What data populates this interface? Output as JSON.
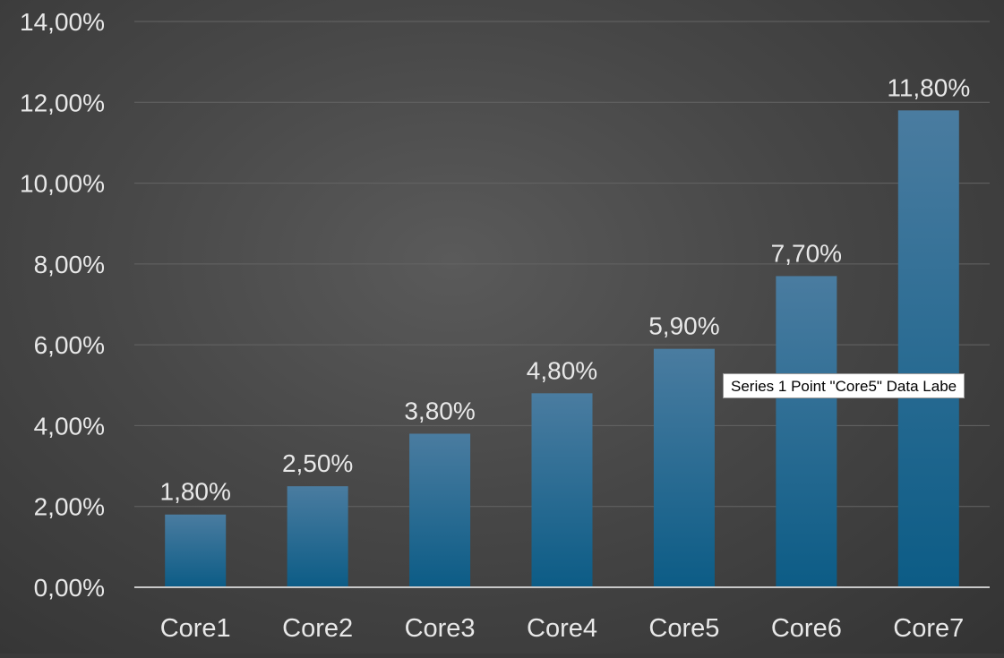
{
  "chart_data": {
    "type": "bar",
    "categories": [
      "Core1",
      "Core2",
      "Core3",
      "Core4",
      "Core5",
      "Core6",
      "Core7"
    ],
    "series": [
      {
        "values": [
          1.8,
          2.5,
          3.8,
          4.8,
          5.9,
          7.7,
          11.8
        ],
        "labels": [
          "1,80%",
          "2,50%",
          "3,80%",
          "4,80%",
          "5,90%",
          "7,70%",
          "11,80%"
        ]
      }
    ],
    "title": "",
    "xlabel": "",
    "ylabel": "",
    "ylim": [
      0,
      14
    ],
    "yticks": [
      0,
      2,
      4,
      6,
      8,
      10,
      12,
      14
    ],
    "ytick_labels": [
      "0,00%",
      "2,00%",
      "4,00%",
      "6,00%",
      "8,00%",
      "10,00%",
      "12,00%",
      "14,00%"
    ],
    "grid": true,
    "legend": "none",
    "colors": {
      "bar_top": "#4a7ca0",
      "bar_bottom": "#0c5c86",
      "text": "#e8e8e8",
      "grid": "#646464",
      "axis": "#c8c8c8"
    }
  },
  "tooltip": {
    "text": "Series 1 Point \"Core5\" Data Labe"
  }
}
